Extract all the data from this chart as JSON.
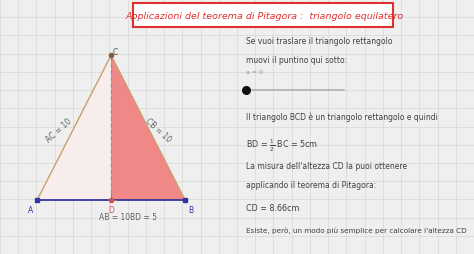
{
  "title": "Applicazioni del teorema di Pitagora :  triangolo equilatero",
  "bg_color": "#efefef",
  "grid_color": "#d8d8d8",
  "A": [
    0,
    0
  ],
  "B": [
    10,
    0
  ],
  "C": [
    5,
    8.66
  ],
  "D": [
    5,
    0
  ],
  "left_fill": "#f7eded",
  "right_fill": "#f08888",
  "side_color": "#c8a070",
  "base_color": "#3535a0",
  "altitude_color": "#909090",
  "title_color": "#e03030",
  "title_bg": "#ffffff",
  "text_color": "#404040",
  "dot_color": "#101010",
  "slider_color": "#b0b0b0",
  "pt_A_color": "#3535a0",
  "pt_B_color": "#3535a0",
  "pt_C_color": "#806040",
  "pt_D_color": "#cc5555"
}
